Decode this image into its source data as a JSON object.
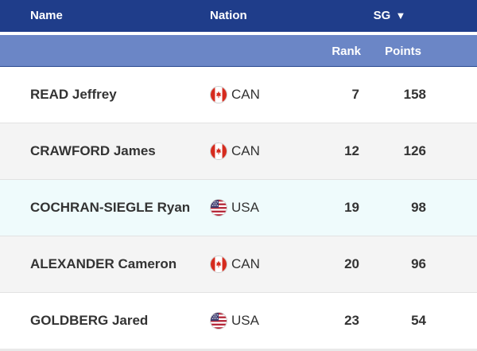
{
  "header": {
    "name_label": "Name",
    "nation_label": "Nation",
    "discipline_label": "SG",
    "sort_icon": "triangle-down-icon",
    "rank_label": "Rank",
    "points_label": "Points"
  },
  "colors": {
    "header_dark": "#1f3d8a",
    "header_light": "#6b86c6",
    "row_alt": "#f4f4f4",
    "row_highlight": "#effbfc"
  },
  "rows": [
    {
      "name": "READ Jeffrey",
      "nation": "CAN",
      "flag_icon": "canada-flag-icon",
      "rank": "7",
      "points": "158"
    },
    {
      "name": "CRAWFORD James",
      "nation": "CAN",
      "flag_icon": "canada-flag-icon",
      "rank": "12",
      "points": "126"
    },
    {
      "name": "COCHRAN-SIEGLE Ryan",
      "nation": "USA",
      "flag_icon": "usa-flag-icon",
      "rank": "19",
      "points": "98"
    },
    {
      "name": "ALEXANDER Cameron",
      "nation": "CAN",
      "flag_icon": "canada-flag-icon",
      "rank": "20",
      "points": "96"
    },
    {
      "name": "GOLDBERG Jared",
      "nation": "USA",
      "flag_icon": "usa-flag-icon",
      "rank": "23",
      "points": "54"
    }
  ]
}
